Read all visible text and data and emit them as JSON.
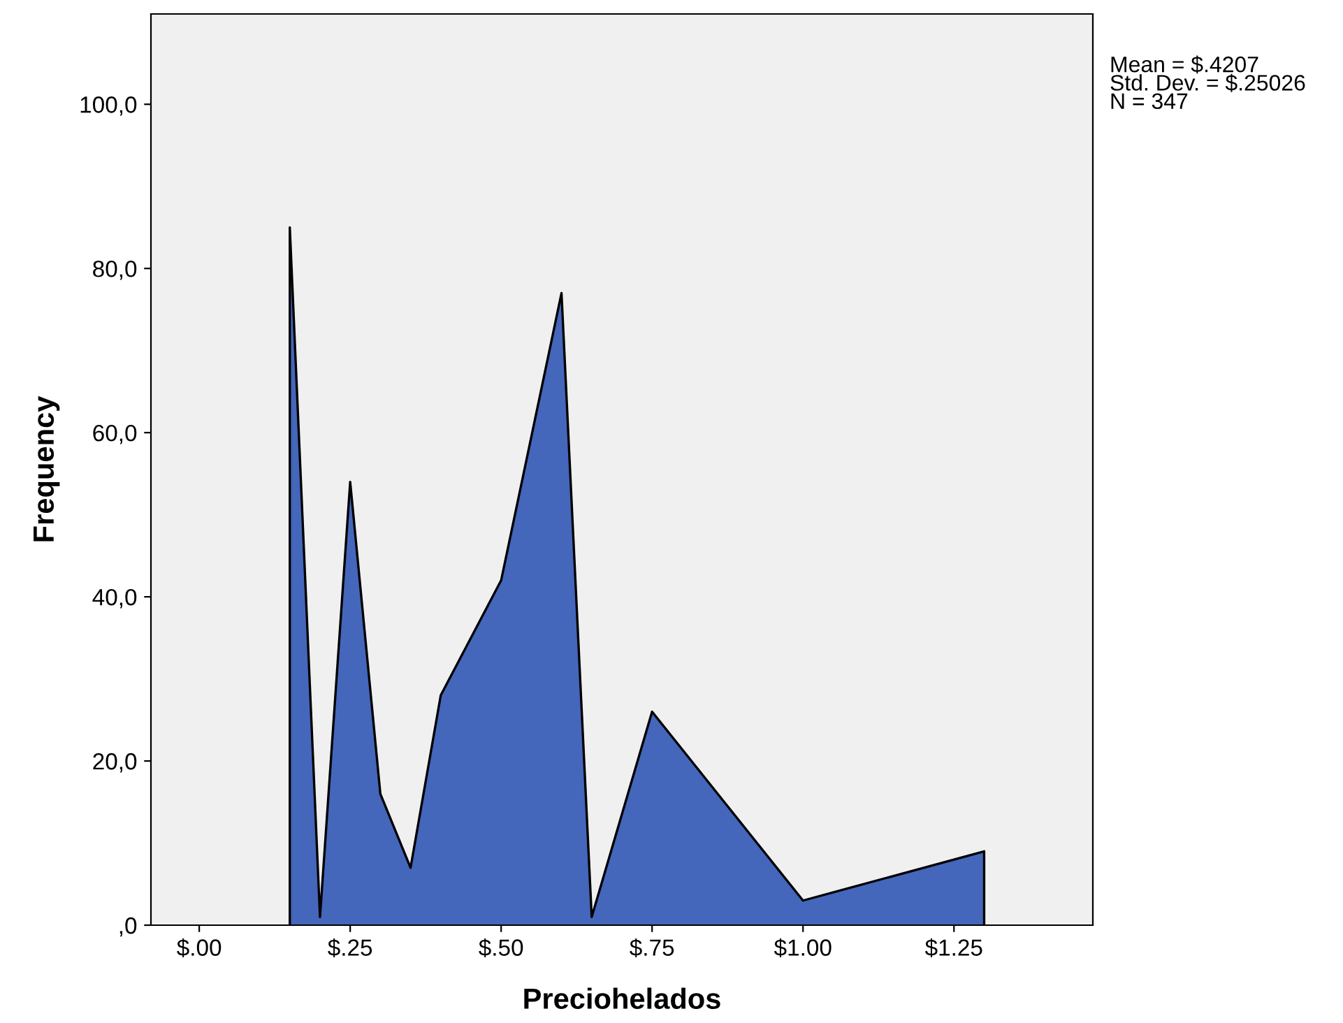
{
  "chart_data": {
    "type": "area",
    "xlabel": "Preciohelados",
    "ylabel": "Frequency",
    "x": [
      0.15,
      0.15,
      0.2,
      0.25,
      0.3,
      0.35,
      0.4,
      0.5,
      0.6,
      0.65,
      0.75,
      1.0,
      1.3,
      1.3
    ],
    "series": [
      {
        "color": "#4466bb",
        "values": [
          0,
          85,
          1,
          54,
          16,
          7,
          28,
          42,
          77,
          1,
          26,
          3,
          9,
          0
        ]
      }
    ],
    "xlim": [
      -0.08,
      1.48
    ],
    "xticks": [
      {
        "value": 0,
        "label": "$.00"
      },
      {
        "value": 0.25,
        "label": "$.25"
      },
      {
        "value": 0.5,
        "label": "$.50"
      },
      {
        "value": 0.75,
        "label": "$.75"
      },
      {
        "value": 1.0,
        "label": "$1.00"
      },
      {
        "value": 1.25,
        "label": "$1.25"
      }
    ],
    "ylim": [
      0,
      111
    ],
    "yticks": [
      {
        "value": 0,
        "label": ",0"
      },
      {
        "value": 20,
        "label": "20,0"
      },
      {
        "value": 40,
        "label": "40,0"
      },
      {
        "value": 60,
        "label": "60,0"
      },
      {
        "value": 80,
        "label": "80,0"
      },
      {
        "value": 100,
        "label": "100,0"
      }
    ],
    "annotations": [
      "Mean = $.4207",
      "Std. Dev. = $.25026",
      "N = 347"
    ],
    "grid": false,
    "legend": false
  }
}
